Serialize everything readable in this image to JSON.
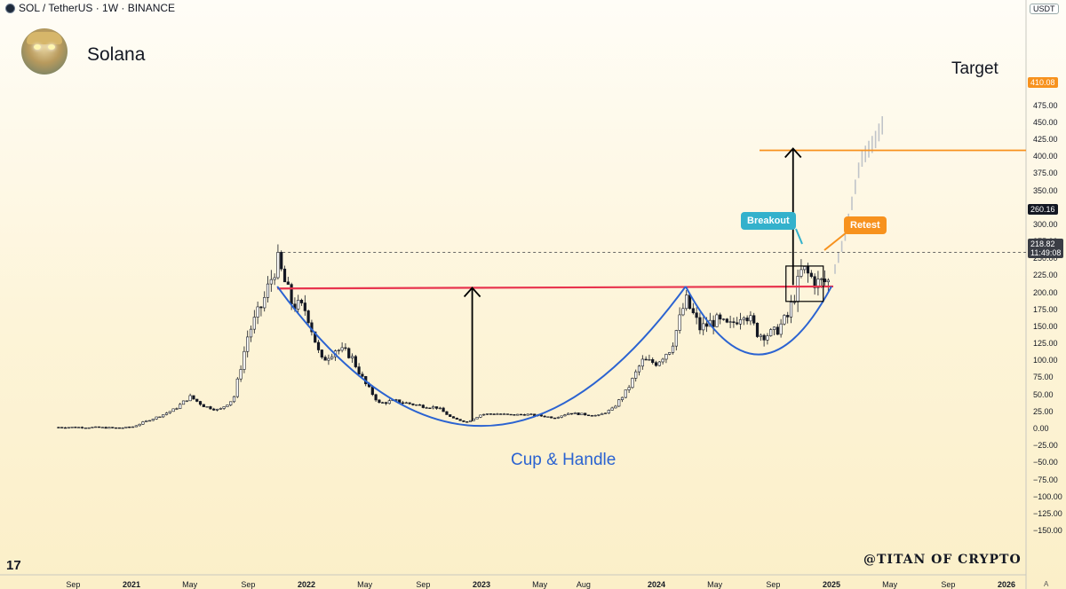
{
  "header": {
    "symbol_line": "SOL / TetherUS · 1W · BINANCE",
    "currency": "USDT"
  },
  "coin_name": "Solana",
  "watermark": "@TITAN OF CRYPTO",
  "tv_logo": "17",
  "corner_label": "A",
  "annotations": {
    "target_label": "Target",
    "pattern_label": "Cup & Handle",
    "breakout_label": "Breakout",
    "retest_label": "Retest"
  },
  "colors": {
    "neckline": "#e8344e",
    "cup_curve": "#2b63d1",
    "target_line": "#f7921e",
    "breakout_tag": "#33b1cc",
    "retest_tag": "#f7921e",
    "projection_bars": "#c0c4c9",
    "candles": "#131722"
  },
  "chart_data": {
    "type": "candlestick",
    "title": "SOL / TetherUS · 1W · BINANCE",
    "y_axis": {
      "ticks": [
        "475.00",
        "450.00",
        "425.00",
        "400.00",
        "375.00",
        "350.00",
        "325.00",
        "300.00",
        "275.00",
        "250.00",
        "225.00",
        "200.00",
        "175.00",
        "150.00",
        "125.00",
        "100.00",
        "75.00",
        "50.00",
        "25.00",
        "0.00",
        "−25.00",
        "−50.00",
        "−75.00",
        "−100.00",
        "−125.00",
        "−150.00"
      ],
      "ylim": [
        -160,
        500
      ]
    },
    "x_axis": {
      "ticks": [
        {
          "label": "Sep",
          "year": false
        },
        {
          "label": "2021",
          "year": true
        },
        {
          "label": "May",
          "year": false
        },
        {
          "label": "Sep",
          "year": false
        },
        {
          "label": "2022",
          "year": true
        },
        {
          "label": "May",
          "year": false
        },
        {
          "label": "Sep",
          "year": false
        },
        {
          "label": "2023",
          "year": true
        },
        {
          "label": "May",
          "year": false
        },
        {
          "label": "Aug",
          "year": false
        },
        {
          "label": "2024",
          "year": true
        },
        {
          "label": "May",
          "year": false
        },
        {
          "label": "Sep",
          "year": false
        },
        {
          "label": "2025",
          "year": true
        },
        {
          "label": "May",
          "year": false
        },
        {
          "label": "Sep",
          "year": false
        },
        {
          "label": "2026",
          "year": true
        }
      ]
    },
    "price_labels": {
      "target": "410.08",
      "ath": "260.16",
      "last_price": "218.82",
      "countdown": "11:49:08"
    },
    "levels": {
      "target": 410.08,
      "ath": 260.16,
      "neckline_start": 207,
      "neckline_end": 210,
      "last_price": 218.82
    },
    "price_path": [
      [
        "2020-08",
        3
      ],
      [
        "2020-10",
        3
      ],
      [
        "2020-12",
        2
      ],
      [
        "2021-01",
        3
      ],
      [
        "2021-02",
        12
      ],
      [
        "2021-03",
        20
      ],
      [
        "2021-04",
        30
      ],
      [
        "2021-05",
        48
      ],
      [
        "2021-06",
        34
      ],
      [
        "2021-07",
        28
      ],
      [
        "2021-08",
        45
      ],
      [
        "2021-09",
        140
      ],
      [
        "2021-10",
        185
      ],
      [
        "2021-11",
        248
      ],
      [
        "2021-12",
        185
      ],
      [
        "2022-01",
        175
      ],
      [
        "2022-02",
        100
      ],
      [
        "2022-03",
        118
      ],
      [
        "2022-04",
        110
      ],
      [
        "2022-05",
        68
      ],
      [
        "2022-06",
        38
      ],
      [
        "2022-07",
        42
      ],
      [
        "2022-08",
        38
      ],
      [
        "2022-09",
        34
      ],
      [
        "2022-10",
        32
      ],
      [
        "2022-11",
        16
      ],
      [
        "2022-12",
        11
      ],
      [
        "2023-01",
        22
      ],
      [
        "2023-02",
        23
      ],
      [
        "2023-03",
        21
      ],
      [
        "2023-04",
        22
      ],
      [
        "2023-05",
        20
      ],
      [
        "2023-06",
        17
      ],
      [
        "2023-07",
        24
      ],
      [
        "2023-08",
        22
      ],
      [
        "2023-09",
        20
      ],
      [
        "2023-10",
        30
      ],
      [
        "2023-11",
        58
      ],
      [
        "2023-12",
        100
      ],
      [
        "2024-01",
        98
      ],
      [
        "2024-02",
        120
      ],
      [
        "2024-03",
        190
      ],
      [
        "2024-04",
        148
      ],
      [
        "2024-05",
        160
      ],
      [
        "2024-06",
        150
      ],
      [
        "2024-07",
        175
      ],
      [
        "2024-08",
        140
      ],
      [
        "2024-09",
        140
      ],
      [
        "2024-10",
        165
      ],
      [
        "2024-11",
        235
      ],
      [
        "2024-12",
        215
      ],
      [
        "2025-01",
        218
      ]
    ],
    "projection_path": [
      [
        "2025-01",
        218
      ],
      [
        "2025-02",
        290
      ],
      [
        "2025-03",
        395
      ],
      [
        "2025-04",
        425
      ],
      [
        "2025-05",
        470
      ],
      [
        "2025-06",
        520
      ]
    ],
    "cup_curve": [
      [
        "2021-11",
        210
      ],
      [
        "2023-01",
        5
      ],
      [
        "2024-03",
        210
      ]
    ],
    "handle_curve": [
      [
        "2024-03",
        210
      ],
      [
        "2024-08",
        110
      ],
      [
        "2025-01",
        210
      ]
    ]
  }
}
